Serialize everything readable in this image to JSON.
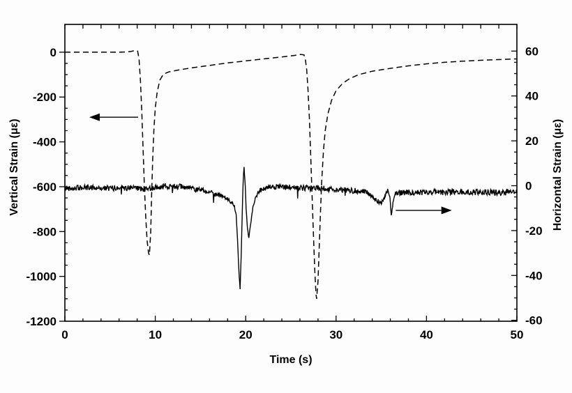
{
  "figure": {
    "background": "#fdfdfd",
    "ink": "#000000"
  },
  "chart_data": {
    "type": "line",
    "title": "",
    "legend": "none",
    "grid": false,
    "axes": {
      "x": {
        "label": "Time (s)",
        "range": [
          0,
          50
        ],
        "major_ticks": [
          0,
          10,
          20,
          30,
          40,
          50
        ],
        "minor_tick_step": 2
      },
      "left": {
        "label": "Vertical Strain (με)",
        "range_at_frame": [
          -1200,
          124
        ],
        "major_ticks": [
          0,
          -200,
          -400,
          -600,
          -800,
          -1000,
          -1200
        ],
        "minor_tick_step": 50
      },
      "right": {
        "label": "Horizontal Strain (με)",
        "range_at_frame": [
          -60.4,
          71.9
        ],
        "major_ticks": [
          60,
          40,
          20,
          0,
          -20,
          -40,
          -60
        ],
        "minor_tick_step": 5
      }
    },
    "series": [
      {
        "name": "vertical-strain",
        "axis": "left",
        "style": "dashed",
        "noise_amplitude": 0,
        "points": [
          [
            0,
            0
          ],
          [
            1,
            0
          ],
          [
            2,
            0
          ],
          [
            3,
            0
          ],
          [
            4,
            0
          ],
          [
            5,
            0
          ],
          [
            6,
            0
          ],
          [
            6.8,
            1
          ],
          [
            7.3,
            3
          ],
          [
            7.8,
            8
          ],
          [
            8.05,
            5
          ],
          [
            8.2,
            -30
          ],
          [
            8.35,
            -120
          ],
          [
            8.5,
            -260
          ],
          [
            8.65,
            -430
          ],
          [
            8.8,
            -600
          ],
          [
            8.95,
            -740
          ],
          [
            9.1,
            -840
          ],
          [
            9.25,
            -895
          ],
          [
            9.35,
            -905
          ],
          [
            9.5,
            -800
          ],
          [
            9.6,
            -630
          ],
          [
            9.72,
            -470
          ],
          [
            9.85,
            -340
          ],
          [
            10.0,
            -250
          ],
          [
            10.2,
            -180
          ],
          [
            10.5,
            -125
          ],
          [
            10.9,
            -98
          ],
          [
            11.5,
            -88
          ],
          [
            12.5,
            -80
          ],
          [
            14,
            -70
          ],
          [
            16,
            -59
          ],
          [
            18,
            -48
          ],
          [
            20,
            -39
          ],
          [
            22,
            -30
          ],
          [
            24,
            -21
          ],
          [
            25.3,
            -15
          ],
          [
            26.1,
            -10
          ],
          [
            26.45,
            -12
          ],
          [
            26.6,
            -30
          ],
          [
            26.75,
            -80
          ],
          [
            26.9,
            -170
          ],
          [
            27.05,
            -300
          ],
          [
            27.2,
            -470
          ],
          [
            27.35,
            -650
          ],
          [
            27.5,
            -820
          ],
          [
            27.65,
            -975
          ],
          [
            27.78,
            -1080
          ],
          [
            27.85,
            -1100
          ],
          [
            28.0,
            -1020
          ],
          [
            28.12,
            -890
          ],
          [
            28.25,
            -740
          ],
          [
            28.4,
            -580
          ],
          [
            28.6,
            -440
          ],
          [
            28.8,
            -350
          ],
          [
            29.1,
            -275
          ],
          [
            29.5,
            -215
          ],
          [
            30.0,
            -172
          ],
          [
            30.7,
            -140
          ],
          [
            31.5,
            -118
          ],
          [
            32.5,
            -100
          ],
          [
            34,
            -85
          ],
          [
            36,
            -72
          ],
          [
            38,
            -61
          ],
          [
            40,
            -52
          ],
          [
            42,
            -45
          ],
          [
            44,
            -40
          ],
          [
            46,
            -36
          ],
          [
            48,
            -33
          ],
          [
            50,
            -30
          ]
        ]
      },
      {
        "name": "horizontal-strain",
        "axis": "right",
        "style": "solid",
        "noise_amplitude": 1.3,
        "points": [
          [
            0,
            -1
          ],
          [
            1.5,
            -1
          ],
          [
            3,
            -0.8
          ],
          [
            4.5,
            -1.2
          ],
          [
            6,
            -1
          ],
          [
            7.5,
            -1.2
          ],
          [
            9,
            -1.5
          ],
          [
            10,
            -0.8
          ],
          [
            11,
            -0.2
          ],
          [
            12,
            -0.2
          ],
          [
            13,
            -0.6
          ],
          [
            14,
            -1.2
          ],
          [
            15,
            -1.8
          ],
          [
            16,
            -2.8
          ],
          [
            17,
            -4.2
          ],
          [
            17.8,
            -5.5
          ],
          [
            18.4,
            -7
          ],
          [
            18.75,
            -9
          ],
          [
            18.95,
            -13
          ],
          [
            19.1,
            -24
          ],
          [
            19.25,
            -38
          ],
          [
            19.38,
            -46
          ],
          [
            19.5,
            -32
          ],
          [
            19.62,
            -12
          ],
          [
            19.72,
            2
          ],
          [
            19.82,
            8.5
          ],
          [
            19.95,
            0
          ],
          [
            20.05,
            -10
          ],
          [
            20.2,
            -19
          ],
          [
            20.35,
            -23.5
          ],
          [
            20.55,
            -17
          ],
          [
            20.8,
            -9.5
          ],
          [
            21.1,
            -5
          ],
          [
            21.5,
            -2.5
          ],
          [
            22,
            -1.2
          ],
          [
            23,
            -0.6
          ],
          [
            24,
            -0.6
          ],
          [
            25,
            -0.8
          ],
          [
            26,
            -1
          ],
          [
            27,
            -1.2
          ],
          [
            28,
            -1
          ],
          [
            29,
            -1.4
          ],
          [
            30,
            -1.8
          ],
          [
            31,
            -2
          ],
          [
            32,
            -2.2
          ],
          [
            33,
            -2.5
          ],
          [
            33.6,
            -3.5
          ],
          [
            34.1,
            -5.5
          ],
          [
            34.6,
            -7.2
          ],
          [
            35.0,
            -7.4
          ],
          [
            35.3,
            -6
          ],
          [
            35.55,
            -3.2
          ],
          [
            35.75,
            -2
          ],
          [
            35.95,
            -5
          ],
          [
            36.1,
            -13.5
          ],
          [
            36.25,
            -9
          ],
          [
            36.45,
            -4
          ],
          [
            36.7,
            -3
          ],
          [
            37.5,
            -3
          ],
          [
            39,
            -3
          ],
          [
            40.5,
            -2.8
          ],
          [
            42,
            -3
          ],
          [
            43.5,
            -2.6
          ],
          [
            45,
            -3
          ],
          [
            46.5,
            -2.8
          ],
          [
            48,
            -3
          ],
          [
            49.5,
            -3
          ],
          [
            50,
            -3
          ]
        ]
      }
    ],
    "annotations": [
      {
        "type": "arrow",
        "direction": "left",
        "axis": "left",
        "from_s": 8.1,
        "to_s": 2.7,
        "value": -290
      },
      {
        "type": "arrow",
        "direction": "right",
        "axis": "right",
        "from_s": 36.6,
        "to_s": 42.8,
        "value": -11
      }
    ]
  }
}
